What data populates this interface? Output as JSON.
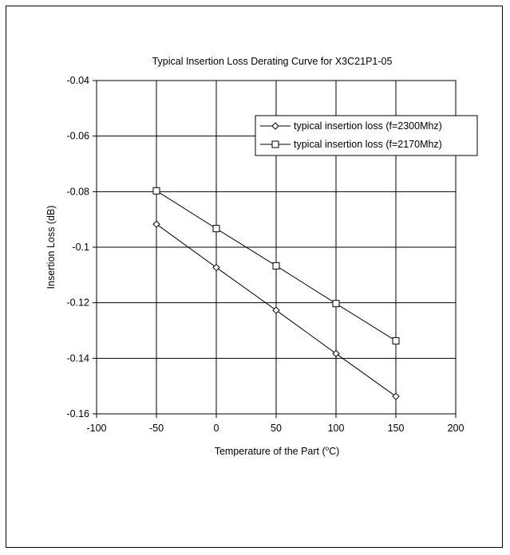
{
  "chart_data": {
    "type": "line",
    "title": "Typical Insertion Loss Derating Curve for X3C21P1-05",
    "xlabel": "Temperature of the Part (",
    "xlabel_superscript": "o",
    "xlabel_suffix": "C)",
    "ylabel": "Insertion Loss (dB)",
    "xlim": [
      -100,
      200
    ],
    "ylim": [
      -0.16,
      -0.04
    ],
    "x_ticks": [
      -100,
      -50,
      0,
      50,
      100,
      150,
      200
    ],
    "x_tick_labels": [
      "-100",
      "-50",
      "0",
      "50",
      "100",
      "150",
      "200"
    ],
    "y_ticks": [
      -0.04,
      -0.06,
      -0.08,
      -0.1,
      -0.12,
      -0.14,
      -0.16
    ],
    "y_tick_labels": [
      "-0.04",
      "-0.06",
      "-0.08",
      "-0.1",
      "-0.12",
      "-0.14",
      "-0.16"
    ],
    "grid": true,
    "legend_position": "top-right",
    "series": [
      {
        "name": "typical insertion loss (f=2300Mhz)",
        "marker": "diamond",
        "x": [
          -50,
          0,
          50,
          100,
          150
        ],
        "y": [
          -0.0917,
          -0.1073,
          -0.1227,
          -0.1383,
          -0.1537
        ]
      },
      {
        "name": "typical insertion loss (f=2170Mhz)",
        "marker": "square",
        "x": [
          -50,
          0,
          50,
          100,
          150
        ],
        "y": [
          -0.0797,
          -0.0933,
          -0.1067,
          -0.1203,
          -0.1337
        ]
      }
    ]
  }
}
